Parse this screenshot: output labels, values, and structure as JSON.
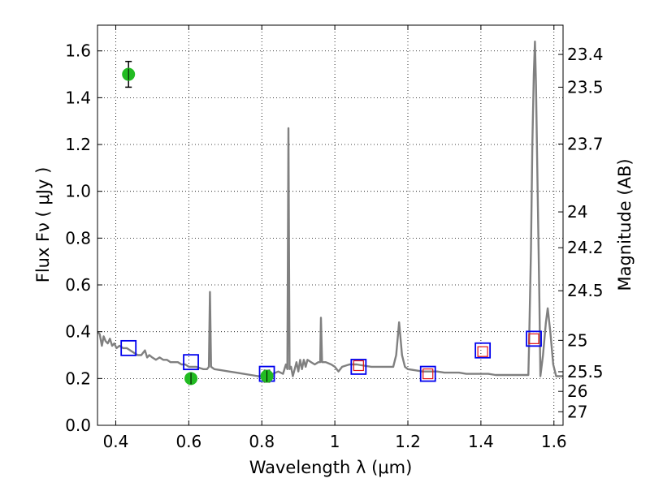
{
  "chart_data": {
    "type": "scatter",
    "xlabel": "Wavelength  λ (μm)",
    "ylabel": "Flux  Fν  ( μJy )",
    "ylabel_right": "Magnitude (AB)",
    "xlim": [
      0.35,
      1.625
    ],
    "ylim": [
      0.0,
      1.71
    ],
    "grid": true,
    "x_ticks": [
      0.4,
      0.6,
      0.8,
      1.0,
      1.2,
      1.4,
      1.6
    ],
    "x_tick_labels": [
      "0.4",
      "0.6",
      "0.8",
      "1",
      "1.2",
      "1.4",
      "1.6"
    ],
    "y_ticks": [
      0.0,
      0.2,
      0.4,
      0.6,
      0.8,
      1.0,
      1.2,
      1.4,
      1.6
    ],
    "y_tick_labels": [
      "0.0",
      "0.2",
      "0.4",
      "0.6",
      "0.8",
      "1.0",
      "1.2",
      "1.4",
      "1.6"
    ],
    "right_ticks": [
      {
        "label": "23.4",
        "flux": 1.585
      },
      {
        "label": "23.5",
        "flux": 1.445
      },
      {
        "label": "23.7",
        "flux": 1.202
      },
      {
        "label": "24",
        "flux": 0.912
      },
      {
        "label": "24.2",
        "flux": 0.759
      },
      {
        "label": "24.5",
        "flux": 0.575
      },
      {
        "label": "25",
        "flux": 0.363
      },
      {
        "label": "25.5",
        "flux": 0.229
      },
      {
        "label": "26",
        "flux": 0.145
      },
      {
        "label": "27",
        "flux": 0.058
      }
    ],
    "series": [
      {
        "name": "model spectrum",
        "kind": "line",
        "color": "#808080",
        "points": [
          [
            0.35,
            0.4
          ],
          [
            0.356,
            0.39
          ],
          [
            0.362,
            0.34
          ],
          [
            0.367,
            0.38
          ],
          [
            0.372,
            0.36
          ],
          [
            0.378,
            0.35
          ],
          [
            0.384,
            0.37
          ],
          [
            0.39,
            0.34
          ],
          [
            0.396,
            0.35
          ],
          [
            0.402,
            0.33
          ],
          [
            0.41,
            0.34
          ],
          [
            0.42,
            0.33
          ],
          [
            0.43,
            0.33
          ],
          [
            0.44,
            0.32
          ],
          [
            0.45,
            0.31
          ],
          [
            0.46,
            0.3
          ],
          [
            0.47,
            0.3
          ],
          [
            0.48,
            0.32
          ],
          [
            0.486,
            0.29
          ],
          [
            0.492,
            0.3
          ],
          [
            0.5,
            0.29
          ],
          [
            0.51,
            0.28
          ],
          [
            0.52,
            0.29
          ],
          [
            0.53,
            0.28
          ],
          [
            0.54,
            0.28
          ],
          [
            0.55,
            0.27
          ],
          [
            0.56,
            0.27
          ],
          [
            0.57,
            0.27
          ],
          [
            0.58,
            0.26
          ],
          [
            0.59,
            0.26
          ],
          [
            0.6,
            0.25
          ],
          [
            0.61,
            0.25
          ],
          [
            0.62,
            0.25
          ],
          [
            0.63,
            0.245
          ],
          [
            0.64,
            0.24
          ],
          [
            0.65,
            0.24
          ],
          [
            0.655,
            0.25
          ],
          [
            0.658,
            0.57
          ],
          [
            0.661,
            0.25
          ],
          [
            0.67,
            0.24
          ],
          [
            0.69,
            0.235
          ],
          [
            0.71,
            0.23
          ],
          [
            0.73,
            0.225
          ],
          [
            0.75,
            0.22
          ],
          [
            0.77,
            0.215
          ],
          [
            0.79,
            0.21
          ],
          [
            0.81,
            0.21
          ],
          [
            0.83,
            0.22
          ],
          [
            0.845,
            0.23
          ],
          [
            0.858,
            0.22
          ],
          [
            0.866,
            0.26
          ],
          [
            0.87,
            0.24
          ],
          [
            0.873,
            1.27
          ],
          [
            0.876,
            0.24
          ],
          [
            0.88,
            0.25
          ],
          [
            0.885,
            0.21
          ],
          [
            0.89,
            0.24
          ],
          [
            0.895,
            0.27
          ],
          [
            0.9,
            0.23
          ],
          [
            0.905,
            0.28
          ],
          [
            0.91,
            0.24
          ],
          [
            0.915,
            0.28
          ],
          [
            0.92,
            0.25
          ],
          [
            0.925,
            0.28
          ],
          [
            0.935,
            0.27
          ],
          [
            0.945,
            0.26
          ],
          [
            0.955,
            0.27
          ],
          [
            0.96,
            0.27
          ],
          [
            0.962,
            0.46
          ],
          [
            0.965,
            0.27
          ],
          [
            0.975,
            0.27
          ],
          [
            0.99,
            0.26
          ],
          [
            1.0,
            0.25
          ],
          [
            1.01,
            0.23
          ],
          [
            1.02,
            0.25
          ],
          [
            1.04,
            0.26
          ],
          [
            1.06,
            0.26
          ],
          [
            1.08,
            0.255
          ],
          [
            1.1,
            0.25
          ],
          [
            1.12,
            0.25
          ],
          [
            1.14,
            0.25
          ],
          [
            1.16,
            0.25
          ],
          [
            1.168,
            0.3
          ],
          [
            1.176,
            0.44
          ],
          [
            1.184,
            0.3
          ],
          [
            1.192,
            0.25
          ],
          [
            1.2,
            0.24
          ],
          [
            1.22,
            0.235
          ],
          [
            1.24,
            0.23
          ],
          [
            1.26,
            0.23
          ],
          [
            1.28,
            0.23
          ],
          [
            1.3,
            0.225
          ],
          [
            1.32,
            0.225
          ],
          [
            1.34,
            0.225
          ],
          [
            1.36,
            0.22
          ],
          [
            1.38,
            0.22
          ],
          [
            1.4,
            0.22
          ],
          [
            1.42,
            0.22
          ],
          [
            1.44,
            0.215
          ],
          [
            1.46,
            0.215
          ],
          [
            1.48,
            0.215
          ],
          [
            1.5,
            0.215
          ],
          [
            1.52,
            0.215
          ],
          [
            1.53,
            0.215
          ],
          [
            1.532,
            0.35
          ],
          [
            1.537,
            0.75
          ],
          [
            1.541,
            1.2
          ],
          [
            1.545,
            1.5
          ],
          [
            1.548,
            1.64
          ],
          [
            1.551,
            1.45
          ],
          [
            1.555,
            1.05
          ],
          [
            1.56,
            0.55
          ],
          [
            1.563,
            0.21
          ],
          [
            1.57,
            0.3
          ],
          [
            1.578,
            0.44
          ],
          [
            1.583,
            0.5
          ],
          [
            1.59,
            0.4
          ],
          [
            1.598,
            0.26
          ],
          [
            1.606,
            0.21
          ],
          [
            1.615,
            0.21
          ],
          [
            1.625,
            0.21
          ]
        ]
      },
      {
        "name": "model photometry",
        "kind": "marker",
        "marker": "square",
        "color": "#0000ee",
        "points": [
          [
            0.435,
            0.33
          ],
          [
            0.606,
            0.27
          ],
          [
            0.814,
            0.22
          ],
          [
            1.065,
            0.25
          ],
          [
            1.255,
            0.22
          ],
          [
            1.405,
            0.32
          ],
          [
            1.545,
            0.37
          ]
        ]
      },
      {
        "name": "model photometry (small)",
        "kind": "marker",
        "marker": "square",
        "color": "#e01010",
        "points": [
          [
            1.065,
            0.255
          ],
          [
            1.255,
            0.22
          ],
          [
            1.405,
            0.315
          ],
          [
            1.545,
            0.37
          ]
        ]
      },
      {
        "name": "observed photometry",
        "kind": "errorbar",
        "color": "#22bb22",
        "points": [
          {
            "x": 0.435,
            "y": 1.5,
            "err": 0.055
          },
          {
            "x": 0.606,
            "y": 0.2,
            "err": 0.02
          },
          {
            "x": 0.814,
            "y": 0.21,
            "err": 0.025
          }
        ]
      }
    ]
  }
}
